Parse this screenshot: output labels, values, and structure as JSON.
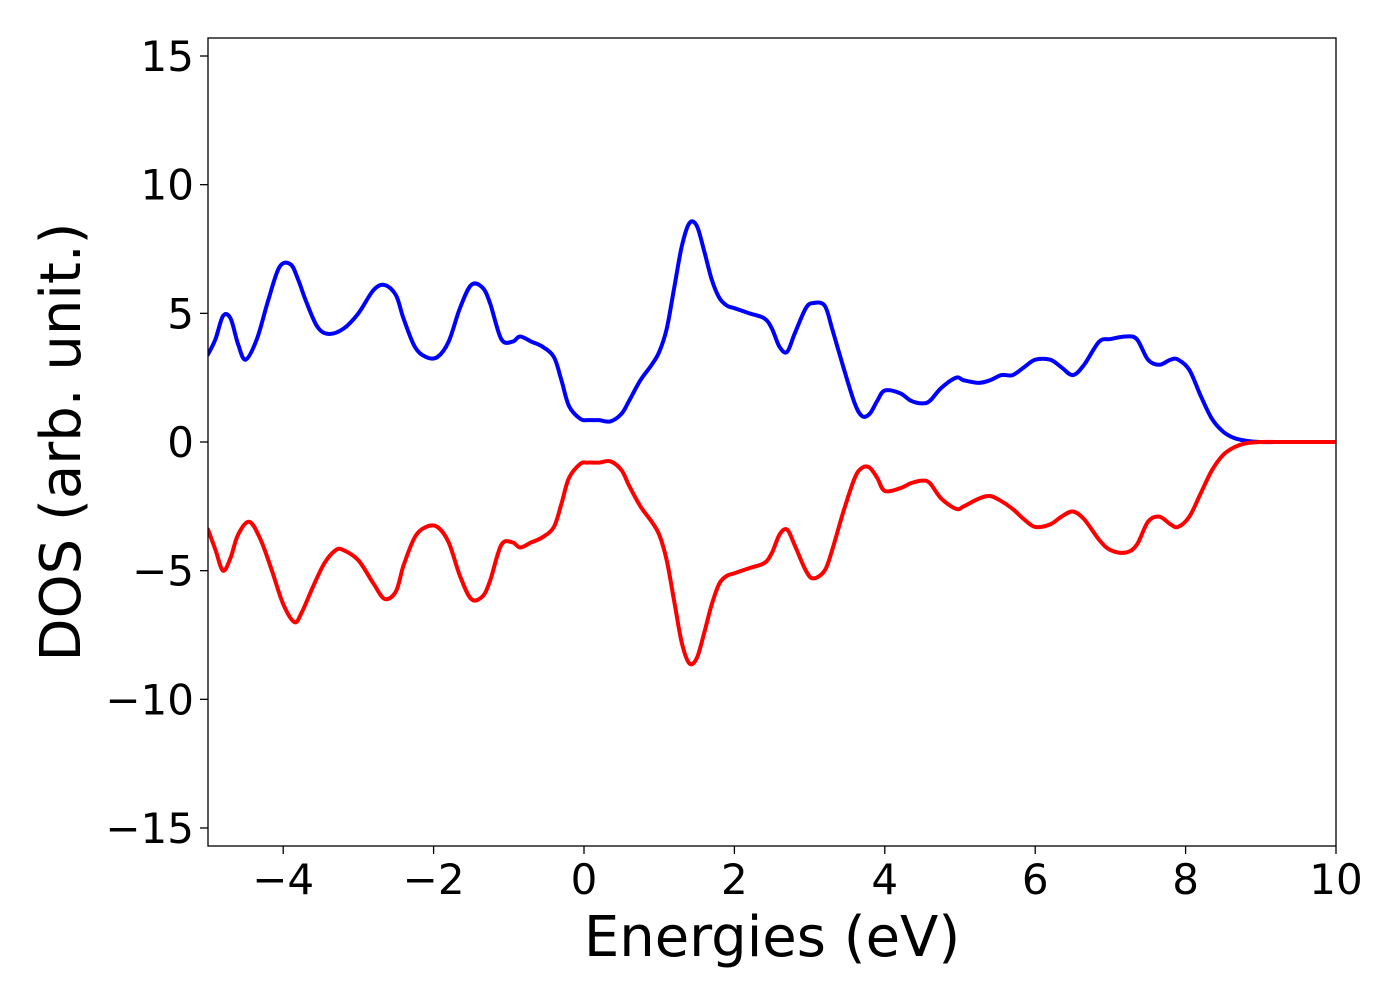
{
  "chart_data": {
    "type": "line",
    "title": "",
    "xlabel": "Energies (eV)",
    "ylabel": "DOS (arb. unit.)",
    "xlim": [
      -5,
      10
    ],
    "ylim": [
      -15.7,
      15.7
    ],
    "grid": false,
    "legend": "none",
    "x_ticks": [
      -4,
      -2,
      0,
      2,
      4,
      6,
      8,
      10
    ],
    "y_ticks": [
      15,
      10,
      5,
      0,
      -5,
      -10,
      -15
    ],
    "x_tick_labels": [
      "−4",
      "−2",
      "0",
      "2",
      "4",
      "6",
      "8",
      "10"
    ],
    "y_tick_labels": [
      "15",
      "10",
      "5",
      "0",
      "−5",
      "−10",
      "−15"
    ],
    "series": [
      {
        "color": "#0000ff",
        "x": [
          -5.0,
          -4.9,
          -4.8,
          -4.7,
          -4.6,
          -4.5,
          -4.35,
          -4.2,
          -4.05,
          -3.9,
          -3.8,
          -3.7,
          -3.55,
          -3.4,
          -3.2,
          -3.0,
          -2.8,
          -2.65,
          -2.5,
          -2.4,
          -2.25,
          -2.1,
          -1.95,
          -1.8,
          -1.65,
          -1.5,
          -1.35,
          -1.25,
          -1.1,
          -0.95,
          -0.85,
          -0.7,
          -0.55,
          -0.4,
          -0.3,
          -0.2,
          -0.05,
          0.05,
          0.2,
          0.35,
          0.5,
          0.6,
          0.75,
          0.9,
          1.0,
          1.1,
          1.2,
          1.3,
          1.4,
          1.5,
          1.6,
          1.7,
          1.8,
          1.9,
          2.0,
          2.2,
          2.4,
          2.5,
          2.6,
          2.7,
          2.8,
          2.95,
          3.05,
          3.2,
          3.3,
          3.45,
          3.6,
          3.7,
          3.8,
          3.9,
          4.0,
          4.2,
          4.35,
          4.5,
          4.6,
          4.75,
          4.95,
          5.05,
          5.25,
          5.4,
          5.55,
          5.7,
          5.85,
          6.0,
          6.2,
          6.35,
          6.5,
          6.65,
          6.85,
          7.0,
          7.2,
          7.35,
          7.5,
          7.65,
          7.8,
          7.9,
          8.05,
          8.2,
          8.35,
          8.5,
          8.65,
          8.8,
          9.0,
          9.3,
          9.6,
          10.0
        ],
        "y": [
          3.4,
          4.0,
          4.9,
          4.8,
          3.8,
          3.2,
          4.0,
          5.5,
          6.8,
          6.9,
          6.3,
          5.5,
          4.5,
          4.2,
          4.4,
          5.0,
          5.9,
          6.1,
          5.7,
          4.8,
          3.7,
          3.3,
          3.3,
          3.9,
          5.2,
          6.1,
          6.0,
          5.4,
          4.0,
          3.9,
          4.1,
          3.9,
          3.7,
          3.3,
          2.4,
          1.4,
          0.9,
          0.85,
          0.85,
          0.8,
          1.1,
          1.6,
          2.4,
          3.0,
          3.5,
          4.4,
          6.0,
          7.6,
          8.5,
          8.4,
          7.4,
          6.3,
          5.6,
          5.3,
          5.2,
          5.0,
          4.8,
          4.4,
          3.7,
          3.5,
          4.2,
          5.2,
          5.4,
          5.3,
          4.4,
          2.9,
          1.5,
          1.0,
          1.1,
          1.6,
          2.0,
          1.9,
          1.6,
          1.5,
          1.6,
          2.1,
          2.5,
          2.4,
          2.3,
          2.4,
          2.6,
          2.6,
          2.9,
          3.2,
          3.2,
          2.9,
          2.6,
          3.0,
          3.9,
          4.0,
          4.1,
          4.0,
          3.2,
          3.0,
          3.2,
          3.2,
          2.8,
          1.8,
          0.9,
          0.4,
          0.15,
          0.05,
          0.0,
          0.0,
          0.0,
          0.0
        ]
      },
      {
        "color": "#ff0000",
        "x": [
          -5.0,
          -4.9,
          -4.8,
          -4.7,
          -4.6,
          -4.45,
          -4.3,
          -4.15,
          -4.0,
          -3.85,
          -3.75,
          -3.6,
          -3.45,
          -3.3,
          -3.2,
          -3.0,
          -2.8,
          -2.65,
          -2.5,
          -2.4,
          -2.25,
          -2.1,
          -1.95,
          -1.8,
          -1.65,
          -1.5,
          -1.35,
          -1.25,
          -1.1,
          -0.95,
          -0.85,
          -0.7,
          -0.55,
          -0.4,
          -0.3,
          -0.2,
          -0.05,
          0.05,
          0.2,
          0.35,
          0.5,
          0.6,
          0.75,
          0.9,
          1.0,
          1.1,
          1.2,
          1.3,
          1.4,
          1.5,
          1.6,
          1.7,
          1.8,
          1.9,
          2.0,
          2.2,
          2.4,
          2.5,
          2.6,
          2.7,
          2.8,
          2.95,
          3.05,
          3.2,
          3.3,
          3.45,
          3.6,
          3.7,
          3.8,
          3.9,
          4.0,
          4.2,
          4.35,
          4.5,
          4.6,
          4.75,
          4.95,
          5.05,
          5.25,
          5.4,
          5.55,
          5.7,
          5.85,
          6.0,
          6.2,
          6.35,
          6.5,
          6.65,
          6.85,
          7.0,
          7.2,
          7.35,
          7.5,
          7.65,
          7.8,
          7.9,
          8.05,
          8.2,
          8.35,
          8.5,
          8.65,
          8.8,
          9.0,
          9.3,
          9.6,
          10.0
        ],
        "y": [
          -3.4,
          -4.2,
          -5.0,
          -4.5,
          -3.6,
          -3.1,
          -3.8,
          -5.0,
          -6.3,
          -7.0,
          -6.6,
          -5.6,
          -4.7,
          -4.2,
          -4.2,
          -4.6,
          -5.5,
          -6.1,
          -5.8,
          -4.8,
          -3.7,
          -3.3,
          -3.3,
          -3.9,
          -5.2,
          -6.1,
          -6.0,
          -5.4,
          -4.0,
          -3.9,
          -4.1,
          -3.9,
          -3.7,
          -3.3,
          -2.4,
          -1.4,
          -0.85,
          -0.8,
          -0.8,
          -0.75,
          -1.1,
          -1.7,
          -2.5,
          -3.1,
          -3.6,
          -4.6,
          -6.2,
          -7.8,
          -8.6,
          -8.4,
          -7.4,
          -6.3,
          -5.5,
          -5.2,
          -5.1,
          -4.9,
          -4.7,
          -4.3,
          -3.6,
          -3.4,
          -4.0,
          -5.0,
          -5.3,
          -5.0,
          -4.2,
          -2.7,
          -1.4,
          -1.0,
          -1.0,
          -1.4,
          -1.9,
          -1.8,
          -1.6,
          -1.5,
          -1.6,
          -2.2,
          -2.6,
          -2.5,
          -2.2,
          -2.1,
          -2.3,
          -2.6,
          -3.0,
          -3.3,
          -3.2,
          -2.9,
          -2.7,
          -3.0,
          -3.8,
          -4.2,
          -4.3,
          -4.0,
          -3.1,
          -2.9,
          -3.2,
          -3.3,
          -2.9,
          -2.0,
          -1.1,
          -0.5,
          -0.2,
          -0.05,
          0.0,
          0.0,
          0.0,
          0.0
        ]
      }
    ]
  }
}
